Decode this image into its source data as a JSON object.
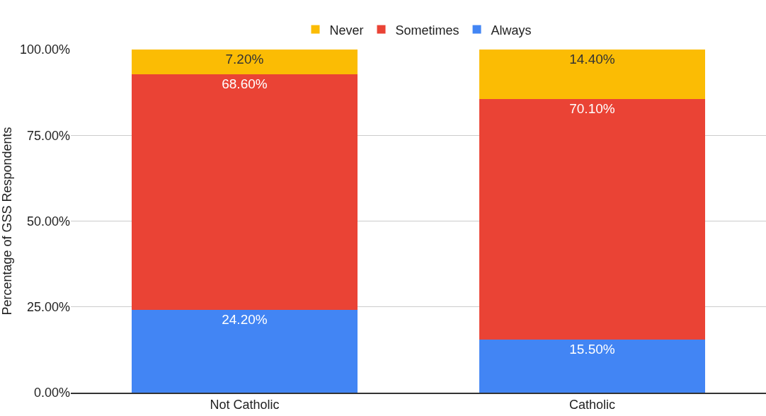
{
  "chart_data": {
    "type": "bar",
    "stacked": true,
    "categories": [
      "Not Catholic",
      "Catholic"
    ],
    "ylabel": "Percentage of GSS Respondents",
    "ylim": [
      0,
      100
    ],
    "yticks": [
      {
        "value": 0,
        "label": "0.00%"
      },
      {
        "value": 25,
        "label": "25.00%"
      },
      {
        "value": 50,
        "label": "50.00%"
      },
      {
        "value": 75,
        "label": "75.00%"
      },
      {
        "value": 100,
        "label": "100.00%"
      }
    ],
    "grid": "y",
    "legend": "top",
    "series": [
      {
        "name": "Always",
        "color": "#4285f4",
        "values": [
          24.2,
          15.5
        ],
        "value_labels": [
          "24.20%",
          "15.50%"
        ]
      },
      {
        "name": "Sometimes",
        "color": "#ea4335",
        "values": [
          68.6,
          70.1
        ],
        "value_labels": [
          "68.60%",
          "70.10%"
        ]
      },
      {
        "name": "Never",
        "color": "#fbbc04",
        "values": [
          7.2,
          14.4
        ],
        "value_labels": [
          "7.20%",
          "14.40%"
        ]
      }
    ]
  }
}
